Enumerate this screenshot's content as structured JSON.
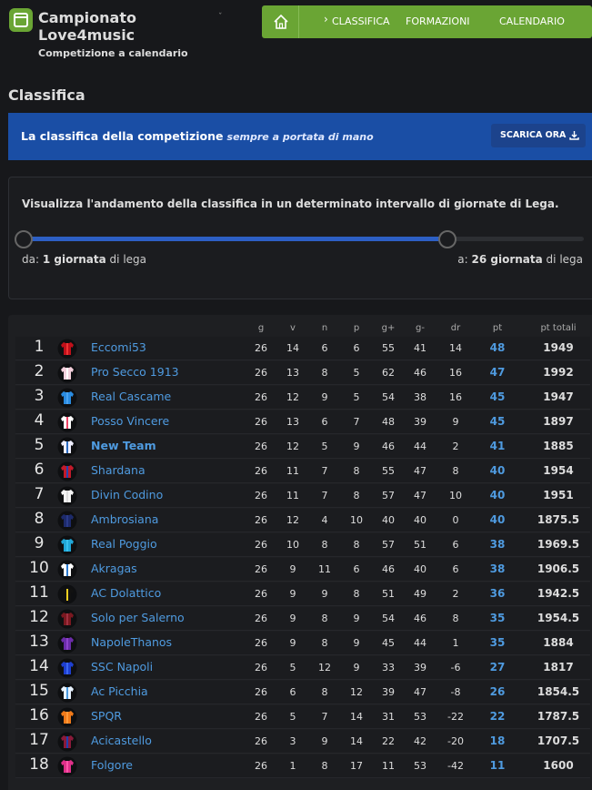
{
  "header": {
    "title": "Campionato Love4music",
    "subtitle": "Competizione a calendario"
  },
  "nav": [
    "CLASSIFICA",
    "FORMAZIONI",
    "CALENDARIO"
  ],
  "section_title": "Classifica",
  "banner": {
    "text": "La classifica della competizione",
    "highlight": "sempre a portata di mano",
    "button": "SCARICA ORA"
  },
  "range": {
    "description": "Visualizza l'andamento della classifica in un determinato intervallo di giornate di Lega.",
    "from_label": "da:",
    "from_value": "1 giornata",
    "from_suffix": "di lega",
    "to_label": "a:",
    "to_value": "26 giornata",
    "to_suffix": "di lega"
  },
  "table": {
    "columns": [
      "g",
      "v",
      "n",
      "p",
      "g+",
      "g-",
      "dr",
      "pt",
      "pt totali"
    ],
    "rows": [
      [
        1,
        "Eccomi53",
        26,
        14,
        6,
        6,
        55,
        41,
        14,
        48,
        1949
      ],
      [
        2,
        "Pro Secco 1913",
        26,
        13,
        8,
        5,
        62,
        46,
        16,
        47,
        1992
      ],
      [
        3,
        "Real Cascame",
        26,
        12,
        9,
        5,
        54,
        38,
        16,
        45,
        1947
      ],
      [
        4,
        "Posso Vincere",
        26,
        13,
        6,
        7,
        48,
        39,
        9,
        45,
        1897
      ],
      [
        5,
        "New Team",
        26,
        12,
        5,
        9,
        46,
        44,
        2,
        41,
        1885
      ],
      [
        6,
        "Shardana",
        26,
        11,
        7,
        8,
        55,
        47,
        8,
        40,
        1954
      ],
      [
        7,
        "Divin Codino",
        26,
        11,
        7,
        8,
        57,
        47,
        10,
        40,
        1951
      ],
      [
        8,
        "Ambrosiana",
        26,
        12,
        4,
        10,
        40,
        40,
        0,
        40,
        1875.5
      ],
      [
        9,
        "Real Poggio",
        26,
        10,
        8,
        8,
        57,
        51,
        6,
        38,
        1969.5
      ],
      [
        10,
        "Akragas",
        26,
        9,
        11,
        6,
        46,
        40,
        6,
        38,
        1906.5
      ],
      [
        11,
        "AC Dolattico",
        26,
        9,
        9,
        8,
        51,
        49,
        2,
        36,
        1942.5
      ],
      [
        12,
        "Solo per Salerno",
        26,
        9,
        8,
        9,
        54,
        46,
        8,
        35,
        1954.5
      ],
      [
        13,
        "NapoleThanos",
        26,
        9,
        8,
        9,
        45,
        44,
        1,
        35,
        1884
      ],
      [
        14,
        "SSC Napoli",
        26,
        5,
        12,
        9,
        33,
        39,
        -6,
        27,
        1817
      ],
      [
        15,
        "Ac Picchia",
        26,
        6,
        8,
        12,
        39,
        47,
        -8,
        26,
        1854.5
      ],
      [
        16,
        "SPQR",
        26,
        5,
        7,
        14,
        31,
        53,
        -22,
        22,
        1787.5
      ],
      [
        17,
        "Acicastello",
        26,
        3,
        9,
        14,
        22,
        42,
        -20,
        18,
        1707.5
      ],
      [
        18,
        "Folgore",
        26,
        1,
        8,
        17,
        11,
        53,
        -42,
        11,
        1600
      ]
    ]
  }
}
